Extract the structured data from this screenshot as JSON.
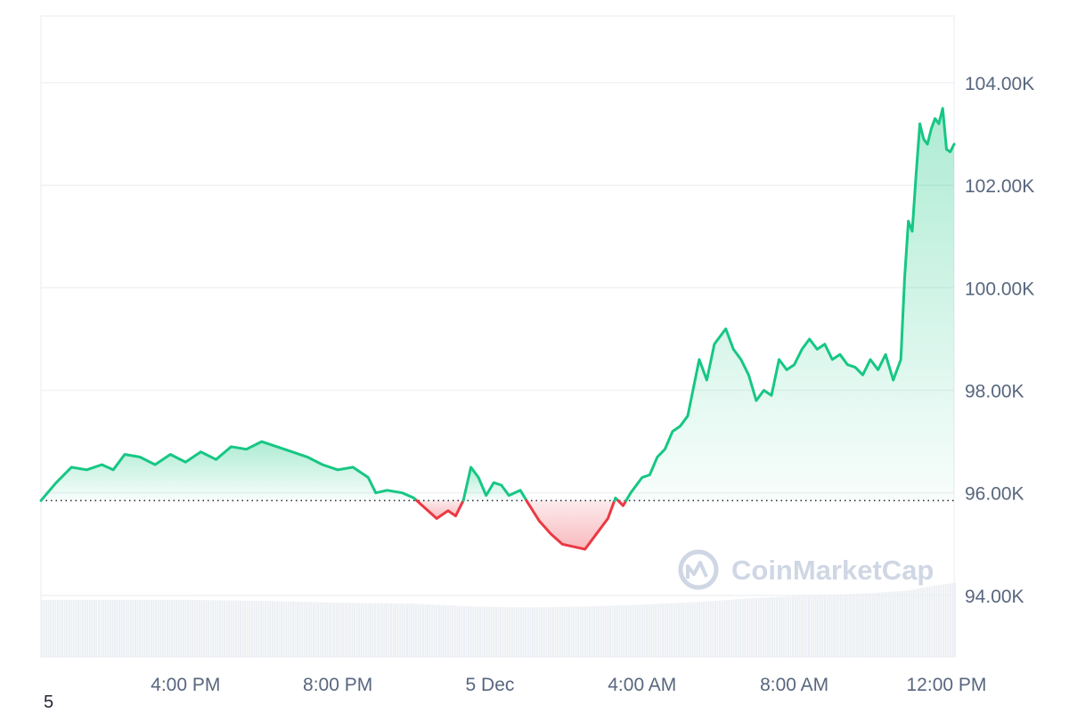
{
  "chart_data": {
    "type": "area",
    "x_start_hour": 12.2,
    "x_end_hour": 36.2,
    "x_ticks": [
      {
        "hour": 16,
        "label": "4:00 PM"
      },
      {
        "hour": 20,
        "label": "8:00 PM"
      },
      {
        "hour": 24,
        "label": "5 Dec"
      },
      {
        "hour": 28,
        "label": "4:00 AM"
      },
      {
        "hour": 32,
        "label": "8:00 AM"
      },
      {
        "hour": 36,
        "label": "12:00 PM"
      }
    ],
    "y_ticks": [
      {
        "value": 94000,
        "label": "94.00K"
      },
      {
        "value": 96000,
        "label": "96.00K"
      },
      {
        "value": 98000,
        "label": "98.00K"
      },
      {
        "value": 100000,
        "label": "100.00K"
      },
      {
        "value": 102000,
        "label": "102.00K"
      },
      {
        "value": 104000,
        "label": "104.00K"
      }
    ],
    "ylim": [
      92800,
      105300
    ],
    "baseline": 95850,
    "colors": {
      "up": "#16c784",
      "down": "#ea3943",
      "grid": "#eff2f5",
      "volume": "#eceff3"
    },
    "watermark": "CoinMarketCap",
    "grid": true,
    "price_series": [
      [
        12.2,
        95850
      ],
      [
        12.6,
        96200
      ],
      [
        13.0,
        96500
      ],
      [
        13.4,
        96450
      ],
      [
        13.8,
        96550
      ],
      [
        14.1,
        96450
      ],
      [
        14.4,
        96750
      ],
      [
        14.8,
        96700
      ],
      [
        15.2,
        96550
      ],
      [
        15.6,
        96750
      ],
      [
        16.0,
        96600
      ],
      [
        16.4,
        96800
      ],
      [
        16.8,
        96650
      ],
      [
        17.2,
        96900
      ],
      [
        17.6,
        96850
      ],
      [
        18.0,
        97000
      ],
      [
        18.4,
        96900
      ],
      [
        18.8,
        96800
      ],
      [
        19.2,
        96700
      ],
      [
        19.6,
        96550
      ],
      [
        20.0,
        96450
      ],
      [
        20.4,
        96500
      ],
      [
        20.8,
        96300
      ],
      [
        21.0,
        96000
      ],
      [
        21.3,
        96050
      ],
      [
        21.7,
        96000
      ],
      [
        22.0,
        95900
      ],
      [
        22.3,
        95700
      ],
      [
        22.6,
        95500
      ],
      [
        22.9,
        95650
      ],
      [
        23.1,
        95550
      ],
      [
        23.3,
        95850
      ],
      [
        23.5,
        96500
      ],
      [
        23.7,
        96300
      ],
      [
        23.9,
        95950
      ],
      [
        24.1,
        96200
      ],
      [
        24.3,
        96150
      ],
      [
        24.5,
        95950
      ],
      [
        24.8,
        96050
      ],
      [
        25.0,
        95800
      ],
      [
        25.3,
        95450
      ],
      [
        25.6,
        95200
      ],
      [
        25.9,
        95000
      ],
      [
        26.2,
        94950
      ],
      [
        26.5,
        94900
      ],
      [
        26.8,
        95200
      ],
      [
        27.1,
        95500
      ],
      [
        27.3,
        95900
      ],
      [
        27.5,
        95750
      ],
      [
        27.7,
        96000
      ],
      [
        28.0,
        96300
      ],
      [
        28.2,
        96350
      ],
      [
        28.4,
        96700
      ],
      [
        28.6,
        96850
      ],
      [
        28.8,
        97200
      ],
      [
        29.0,
        97300
      ],
      [
        29.2,
        97500
      ],
      [
        29.5,
        98600
      ],
      [
        29.7,
        98200
      ],
      [
        29.9,
        98900
      ],
      [
        30.2,
        99200
      ],
      [
        30.4,
        98800
      ],
      [
        30.6,
        98600
      ],
      [
        30.8,
        98300
      ],
      [
        31.0,
        97800
      ],
      [
        31.2,
        98000
      ],
      [
        31.4,
        97900
      ],
      [
        31.6,
        98600
      ],
      [
        31.8,
        98400
      ],
      [
        32.0,
        98500
      ],
      [
        32.2,
        98800
      ],
      [
        32.4,
        99000
      ],
      [
        32.6,
        98800
      ],
      [
        32.8,
        98900
      ],
      [
        33.0,
        98600
      ],
      [
        33.2,
        98700
      ],
      [
        33.4,
        98500
      ],
      [
        33.6,
        98450
      ],
      [
        33.8,
        98300
      ],
      [
        34.0,
        98600
      ],
      [
        34.2,
        98400
      ],
      [
        34.4,
        98700
      ],
      [
        34.6,
        98200
      ],
      [
        34.8,
        98600
      ],
      [
        34.9,
        100200
      ],
      [
        35.0,
        101300
      ],
      [
        35.1,
        101100
      ],
      [
        35.2,
        102200
      ],
      [
        35.3,
        103200
      ],
      [
        35.4,
        102900
      ],
      [
        35.5,
        102800
      ],
      [
        35.6,
        103100
      ],
      [
        35.7,
        103300
      ],
      [
        35.8,
        103200
      ],
      [
        35.9,
        103500
      ],
      [
        36.0,
        102700
      ],
      [
        36.1,
        102650
      ],
      [
        36.2,
        102800
      ]
    ],
    "volume_series": [
      [
        12.2,
        0.6
      ],
      [
        14.0,
        0.6
      ],
      [
        16.0,
        0.6
      ],
      [
        18.0,
        0.59
      ],
      [
        20.0,
        0.57
      ],
      [
        22.0,
        0.56
      ],
      [
        23.5,
        0.53
      ],
      [
        25.0,
        0.52
      ],
      [
        26.5,
        0.53
      ],
      [
        28.0,
        0.55
      ],
      [
        29.5,
        0.58
      ],
      [
        31.0,
        0.62
      ],
      [
        32.5,
        0.65
      ],
      [
        34.0,
        0.67
      ],
      [
        35.0,
        0.7
      ],
      [
        35.5,
        0.74
      ],
      [
        36.2,
        0.78
      ]
    ]
  },
  "stray_label": "5"
}
